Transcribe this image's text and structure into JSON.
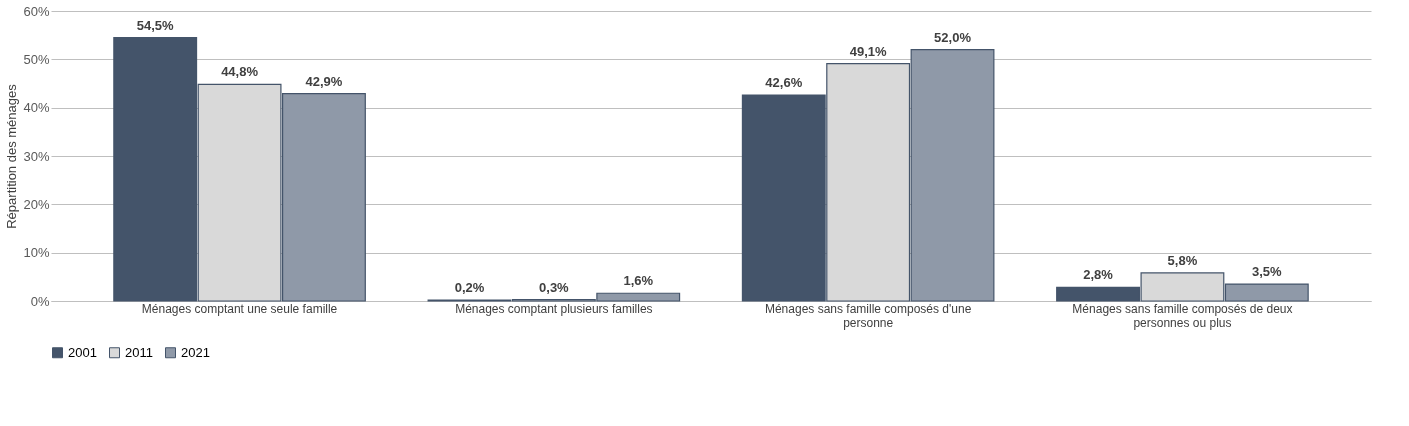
{
  "chart_data": {
    "type": "bar",
    "ylabel": "Répartition des ménages",
    "categories": [
      "Ménages comptant une seule famille",
      "Ménages comptant plusieurs familles",
      "Ménages sans famille composés d'une personne",
      "Ménages sans famille composés de deux personnes ou plus"
    ],
    "series": [
      {
        "name": "2001",
        "color": "#44546a",
        "values": [
          54.5,
          0.2,
          42.6,
          2.8
        ],
        "value_labels": [
          "54,5%",
          "0,2%",
          "42,6%",
          "2,8%"
        ]
      },
      {
        "name": "2011",
        "color": "#d9d9d9",
        "values": [
          44.8,
          0.3,
          49.1,
          5.8
        ],
        "value_labels": [
          "44,8%",
          "0,3%",
          "49,1%",
          "5,8%"
        ]
      },
      {
        "name": "2021",
        "color": "#8f99a8",
        "values": [
          42.9,
          1.6,
          52.0,
          3.5
        ],
        "value_labels": [
          "42,9%",
          "1,6%",
          "52,0%",
          "3,5%"
        ]
      }
    ],
    "ylim": [
      0,
      60
    ],
    "yticks": [
      {
        "value": 0,
        "label": "0%"
      },
      {
        "value": 10,
        "label": "10%"
      },
      {
        "value": 20,
        "label": "20%"
      },
      {
        "value": 30,
        "label": "30%"
      },
      {
        "value": 40,
        "label": "40%"
      },
      {
        "value": 50,
        "label": "50%"
      },
      {
        "value": 60,
        "label": "60%"
      }
    ],
    "grid": "y",
    "legend": "bottom"
  }
}
